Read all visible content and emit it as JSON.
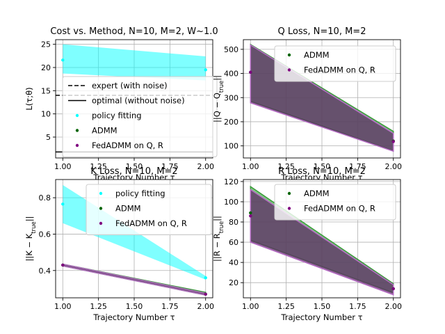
{
  "chart_data": [
    {
      "id": "cost",
      "type": "area",
      "title": "Cost vs. Method, N=10, M=2, W~1.0",
      "xlabel": "Trajectory Number τ",
      "ylabel": "L(τ;θ)",
      "xlim": [
        0.95,
        2.05
      ],
      "ylim": [
        0.5,
        26
      ],
      "xticks": [
        1.0,
        1.25,
        1.5,
        1.75,
        2.0
      ],
      "xtick_labels": [
        "1.00",
        "1.25",
        "1.50",
        "1.75",
        "2.00"
      ],
      "yticks": [
        5,
        10,
        15,
        20,
        25
      ],
      "yticks_labels": [
        "5",
        "10",
        "15",
        "20",
        "25"
      ],
      "grid": true,
      "legend_position": "center-left",
      "hlines": [
        {
          "name": "expert (with noise)",
          "y": 14.0,
          "style": "dashed",
          "color": "#000000"
        },
        {
          "name": "optimal (without noise)",
          "y": 1.8,
          "style": "solid",
          "color": "#000000"
        }
      ],
      "series": [
        {
          "name": "policy fitting",
          "color": "#00ffff",
          "x": [
            1,
            2
          ],
          "y": [
            21.6,
            19.5
          ],
          "lower": [
            18.7,
            17.2
          ],
          "upper": [
            25.0,
            22.4
          ]
        },
        {
          "name": "ADMM",
          "color": "#006400",
          "x": [
            1,
            2
          ],
          "y": [
            null,
            null
          ],
          "lower": [
            null,
            null
          ],
          "upper": [
            null,
            null
          ]
        },
        {
          "name": "FedADMM on Q, R",
          "color": "#800080",
          "x": [
            1,
            2
          ],
          "y": [
            null,
            null
          ],
          "lower": [
            null,
            null
          ],
          "upper": [
            null,
            null
          ]
        }
      ]
    },
    {
      "id": "qloss",
      "type": "area",
      "title": "Q Loss, N=10, M=2",
      "xlabel": "Trajectory Number τ",
      "ylabel": "||Q − Q_true||",
      "xlim": [
        0.95,
        2.05
      ],
      "ylim": [
        50,
        540
      ],
      "xticks": [
        1.0,
        1.25,
        1.5,
        1.75,
        2.0
      ],
      "xtick_labels": [
        "1.00",
        "1.25",
        "1.50",
        "1.75",
        "2.00"
      ],
      "yticks": [
        100,
        200,
        300,
        400,
        500
      ],
      "yticks_labels": [
        "100",
        "200",
        "300",
        "400",
        "500"
      ],
      "grid": true,
      "legend_position": "top-right",
      "series": [
        {
          "name": "ADMM",
          "color": "#006400",
          "x": [
            1,
            2
          ],
          "y": [
            405,
            120
          ],
          "lower": [
            285,
            80
          ],
          "upper": [
            520,
            160
          ]
        },
        {
          "name": "FedADMM on Q, R",
          "color": "#800080",
          "x": [
            1,
            2
          ],
          "y": [
            405,
            118
          ],
          "lower": [
            278,
            78
          ],
          "upper": [
            518,
            152
          ]
        }
      ]
    },
    {
      "id": "kloss",
      "type": "area",
      "title": "K Loss, N=10, M=2",
      "xlabel": "Trajectory Number τ",
      "ylabel": "||K − K_true||",
      "xlim": [
        0.95,
        2.05
      ],
      "ylim": [
        0.25,
        0.9
      ],
      "xticks": [
        1.0,
        1.25,
        1.5,
        1.75,
        2.0
      ],
      "xtick_labels": [
        "1.00",
        "1.25",
        "1.50",
        "1.75",
        "2.00"
      ],
      "yticks": [
        0.4,
        0.6,
        0.8
      ],
      "yticks_labels": [
        "0.4",
        "0.6",
        "0.8"
      ],
      "grid": true,
      "legend_position": "top-right",
      "series": [
        {
          "name": "policy fitting",
          "color": "#00ffff",
          "x": [
            1,
            2
          ],
          "y": [
            0.765,
            0.36
          ],
          "lower": [
            0.66,
            0.35
          ],
          "upper": [
            0.87,
            0.37
          ]
        },
        {
          "name": "ADMM",
          "color": "#006400",
          "x": [
            1,
            2
          ],
          "y": [
            0.43,
            0.27
          ],
          "lower": [
            0.425,
            0.265
          ],
          "upper": [
            0.435,
            0.28
          ]
        },
        {
          "name": "FedADMM on Q, R",
          "color": "#800080",
          "x": [
            1,
            2
          ],
          "y": [
            0.43,
            0.27
          ],
          "lower": [
            0.425,
            0.265
          ],
          "upper": [
            0.435,
            0.275
          ]
        }
      ]
    },
    {
      "id": "rloss",
      "type": "area",
      "title": "R Loss, N=10, M=2",
      "xlabel": "Trajectory Number τ",
      "ylabel": "||R − R_true||",
      "xlim": [
        0.95,
        2.05
      ],
      "ylim": [
        5,
        122
      ],
      "xticks": [
        1.0,
        1.25,
        1.5,
        1.75,
        2.0
      ],
      "xtick_labels": [
        "1.00",
        "1.25",
        "1.50",
        "1.75",
        "2.00"
      ],
      "yticks": [
        20,
        40,
        60,
        80,
        100,
        120
      ],
      "yticks_labels": [
        "20",
        "40",
        "60",
        "80",
        "100",
        "120"
      ],
      "grid": true,
      "legend_position": "top-right",
      "series": [
        {
          "name": "ADMM",
          "color": "#006400",
          "x": [
            1,
            2
          ],
          "y": [
            89,
            14
          ],
          "lower": [
            62,
            10
          ],
          "upper": [
            115,
            19
          ]
        },
        {
          "name": "FedADMM on Q, R",
          "color": "#800080",
          "x": [
            1,
            2
          ],
          "y": [
            86,
            14
          ],
          "lower": [
            60,
            8
          ],
          "upper": [
            112,
            18
          ]
        }
      ]
    }
  ]
}
